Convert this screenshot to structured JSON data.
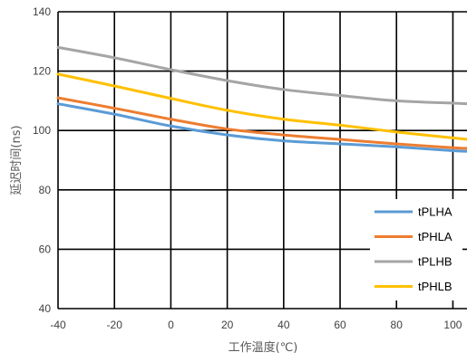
{
  "chart_data": {
    "type": "line",
    "xlabel": "工作温度(℃)",
    "ylabel": "延迟时间(ns)",
    "xlim": [
      -40,
      105
    ],
    "ylim": [
      40,
      140
    ],
    "xticks": [
      -40,
      -20,
      0,
      20,
      40,
      60,
      80,
      100
    ],
    "yticks": [
      40,
      60,
      80,
      100,
      120,
      140
    ],
    "grid": true,
    "legend_position": "bottom-right",
    "series": [
      {
        "name": "tPLHA",
        "color": "#5B9BD5",
        "x": [
          -40,
          -20,
          0,
          20,
          40,
          60,
          80,
          100,
          105
        ],
        "y": [
          109,
          105.5,
          101.5,
          98.5,
          96.5,
          95.5,
          94.5,
          93.2,
          93
        ]
      },
      {
        "name": "tPHLA",
        "color": "#ED7D31",
        "x": [
          -40,
          -20,
          0,
          20,
          40,
          60,
          80,
          100,
          105
        ],
        "y": [
          111,
          107.5,
          103.8,
          100.5,
          98.5,
          97,
          95.5,
          94.2,
          94
        ]
      },
      {
        "name": "tPLHB",
        "color": "#A5A5A5",
        "x": [
          -40,
          -20,
          0,
          20,
          40,
          60,
          80,
          100,
          105
        ],
        "y": [
          128,
          124.5,
          120.5,
          116.8,
          113.8,
          111.8,
          110,
          109.2,
          109
        ]
      },
      {
        "name": "tPHLB",
        "color": "#FFC000",
        "x": [
          -40,
          -20,
          0,
          20,
          40,
          60,
          80,
          100,
          105
        ],
        "y": [
          119,
          115,
          110.8,
          106.8,
          103.8,
          101.8,
          99.5,
          97.5,
          97
        ]
      }
    ]
  }
}
